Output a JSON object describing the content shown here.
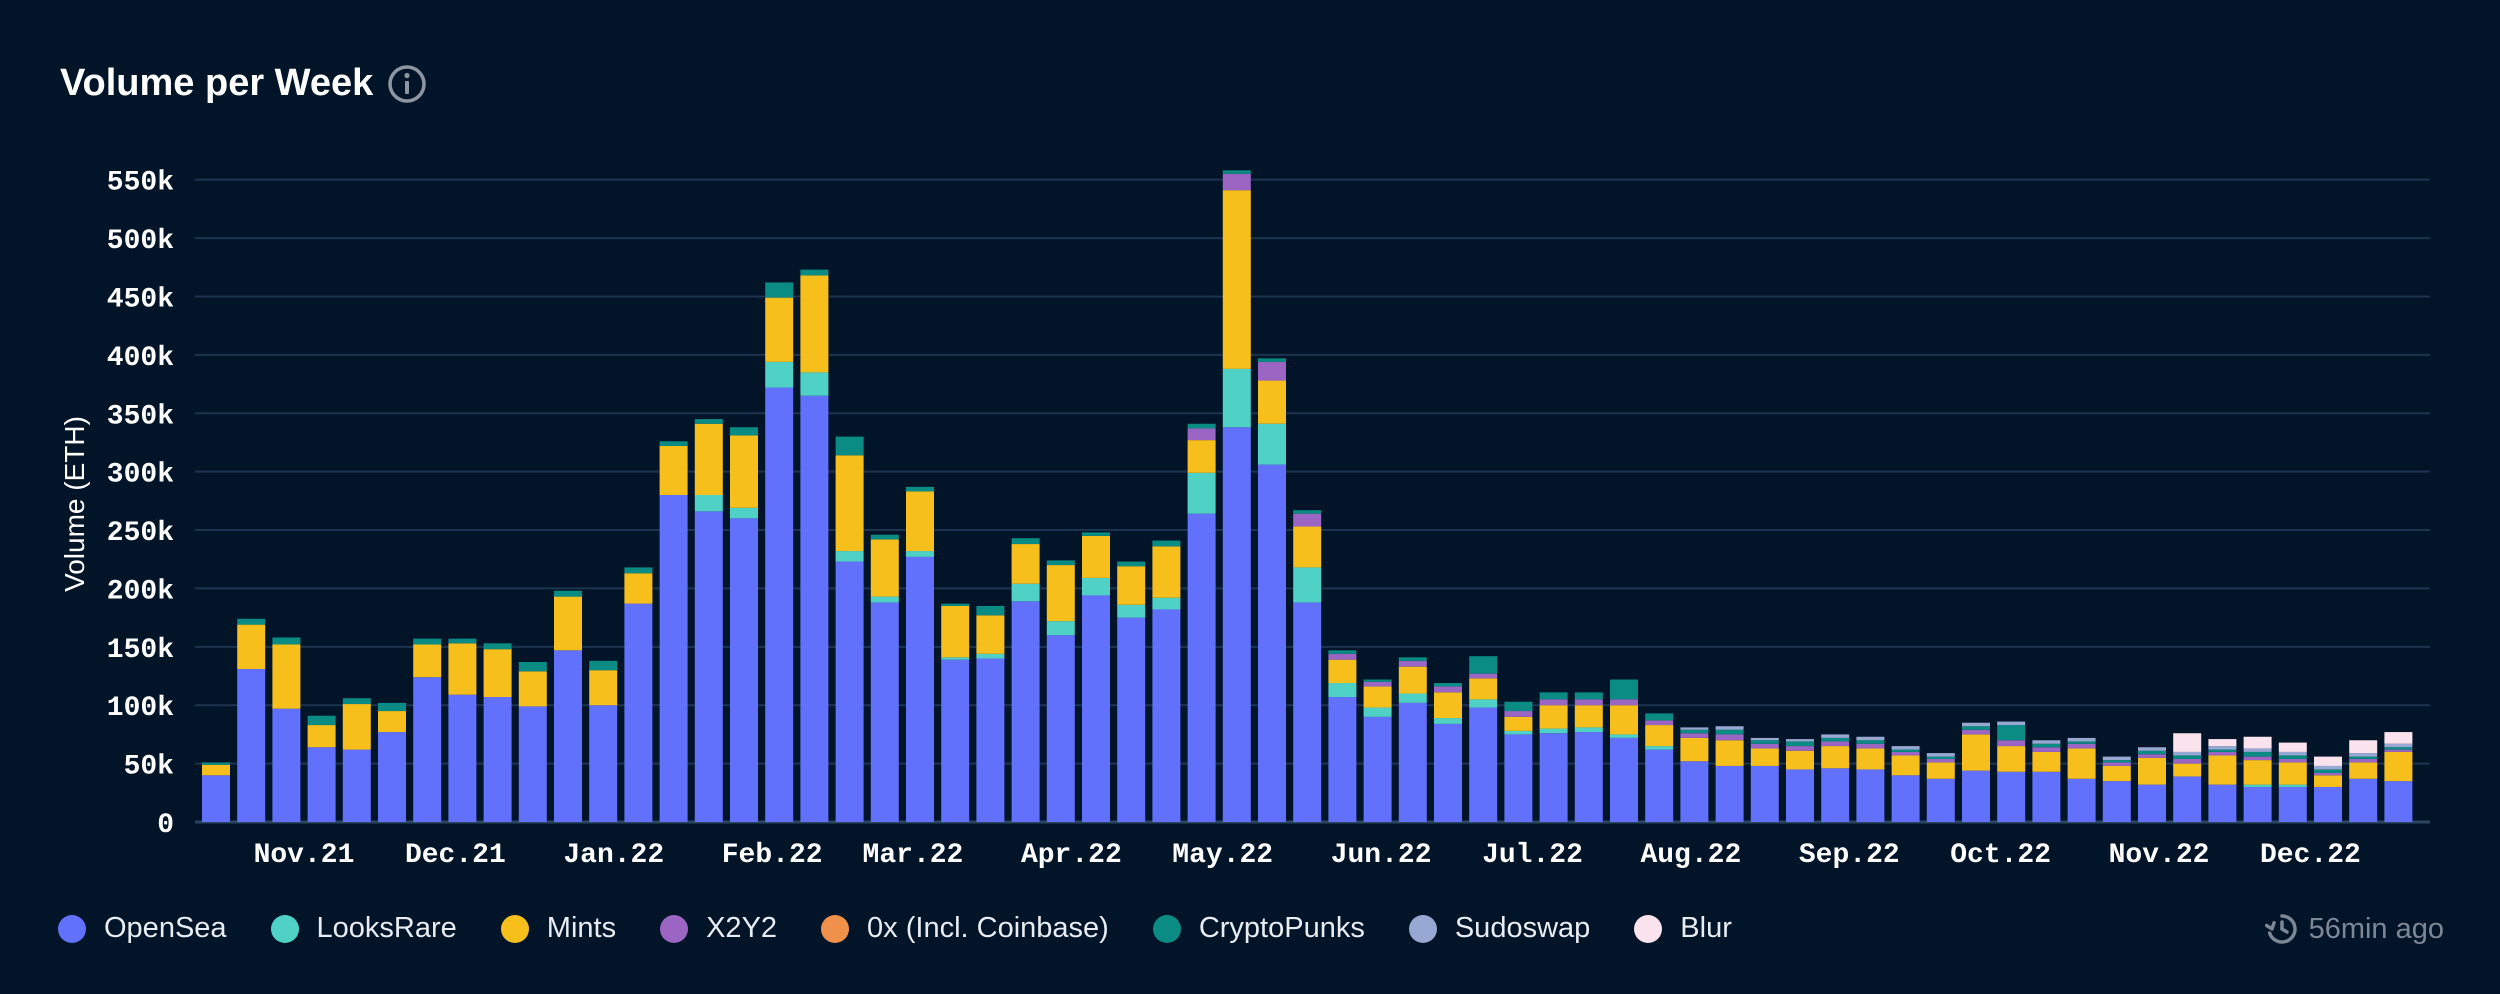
{
  "header": {
    "title": "Volume per Week",
    "info_icon": "info-circle-icon"
  },
  "footer": {
    "updated": "56min ago",
    "updated_icon": "history-clock-icon"
  },
  "chart_data": {
    "type": "bar",
    "stacked": true,
    "title": "Volume per Week",
    "xlabel": "",
    "ylabel": "Volume (ETH)",
    "ylim": [
      0,
      560000
    ],
    "y_ticks": [
      0,
      50000,
      100000,
      150000,
      200000,
      250000,
      300000,
      350000,
      400000,
      450000,
      500000,
      550000
    ],
    "y_tick_labels": [
      "0",
      "50k",
      "100k",
      "150k",
      "200k",
      "250k",
      "300k",
      "350k",
      "400k",
      "450k",
      "500k",
      "550k"
    ],
    "x_tick_labels": [
      {
        "label": "Nov.21",
        "week": 2.5
      },
      {
        "label": "Dec.21",
        "week": 6.8
      },
      {
        "label": "Jan.22",
        "week": 11.3
      },
      {
        "label": "Feb.22",
        "week": 15.8
      },
      {
        "label": "Mar.22",
        "week": 19.8
      },
      {
        "label": "Apr.22",
        "week": 24.3
      },
      {
        "label": "May.22",
        "week": 28.6
      },
      {
        "label": "Jun.22",
        "week": 33.1
      },
      {
        "label": "Jul.22",
        "week": 37.4
      },
      {
        "label": "Aug.22",
        "week": 41.9
      },
      {
        "label": "Sep.22",
        "week": 46.4
      },
      {
        "label": "Oct.22",
        "week": 50.7
      },
      {
        "label": "Nov.22",
        "week": 55.2
      },
      {
        "label": "Dec.22",
        "week": 59.5
      }
    ],
    "grid": true,
    "legend_position": "bottom",
    "series": [
      {
        "name": "OpenSea",
        "color": "#6271fc",
        "values": [
          40000,
          131000,
          97000,
          64000,
          62000,
          77000,
          124000,
          109000,
          107000,
          99000,
          147000,
          100000,
          187000,
          280000,
          266000,
          260000,
          372000,
          365000,
          223000,
          188000,
          227000,
          139000,
          140000,
          189000,
          160000,
          194000,
          175000,
          182000,
          264000,
          338000,
          306000,
          188000,
          107000,
          90000,
          102000,
          84000,
          98000,
          75000,
          76000,
          77000,
          72000,
          62000,
          52000,
          48000,
          48000,
          45000,
          46000,
          45000,
          40000,
          37000,
          44000,
          43000,
          43000,
          37000,
          35000,
          32000,
          39000,
          32000,
          30000,
          30000,
          30000,
          37000,
          35000
        ]
      },
      {
        "name": "LooksRare",
        "color": "#4fd1c5",
        "values": [
          0,
          0,
          0,
          0,
          0,
          0,
          0,
          0,
          0,
          0,
          0,
          0,
          0,
          0,
          14000,
          9000,
          22000,
          20000,
          9000,
          5000,
          5000,
          2000,
          4000,
          15000,
          12000,
          15000,
          11000,
          10000,
          35000,
          50000,
          35000,
          30000,
          12000,
          8000,
          8000,
          5000,
          7000,
          3000,
          4000,
          4000,
          3000,
          3000,
          0,
          0,
          0,
          0,
          0,
          0,
          0,
          0,
          0,
          0,
          0,
          0,
          0,
          0,
          0,
          0,
          2000,
          2000,
          0,
          0,
          0
        ]
      },
      {
        "name": "Mints",
        "color": "#f6bf1c",
        "values": [
          9000,
          38000,
          55000,
          19000,
          39000,
          18000,
          28000,
          44000,
          41000,
          30000,
          46000,
          30000,
          26000,
          42000,
          61000,
          62000,
          55000,
          83000,
          82000,
          49000,
          51000,
          44000,
          33000,
          34000,
          48000,
          36000,
          33000,
          44000,
          28000,
          153000,
          37000,
          35000,
          20000,
          18000,
          23000,
          22000,
          18000,
          12000,
          20000,
          19000,
          25000,
          18000,
          20000,
          22000,
          15000,
          16000,
          19000,
          18000,
          17000,
          14000,
          31000,
          22000,
          17000,
          26000,
          13000,
          23000,
          11000,
          25000,
          21000,
          19000,
          10000,
          14000,
          25000
        ]
      },
      {
        "name": "X2Y2",
        "color": "#9b65c4",
        "values": [
          0,
          0,
          0,
          0,
          0,
          0,
          0,
          0,
          0,
          0,
          0,
          0,
          0,
          0,
          0,
          0,
          0,
          0,
          0,
          0,
          0,
          0,
          0,
          0,
          0,
          0,
          0,
          0,
          10000,
          14000,
          16000,
          11000,
          5000,
          4000,
          5000,
          5000,
          4000,
          5000,
          5000,
          5000,
          5000,
          4000,
          4000,
          5000,
          4000,
          4000,
          4000,
          4000,
          3000,
          3000,
          4000,
          5000,
          4000,
          4000,
          3000,
          3000,
          4000,
          3000,
          3000,
          3000,
          2000,
          3000,
          2000
        ]
      },
      {
        "name": "0x (Incl. Coinbase)",
        "color": "#f0914b",
        "values": [
          0,
          0,
          0,
          0,
          0,
          0,
          0,
          0,
          0,
          0,
          0,
          0,
          0,
          0,
          0,
          0,
          0,
          0,
          0,
          0,
          0,
          0,
          0,
          0,
          0,
          0,
          0,
          0,
          0,
          0,
          0,
          0,
          0,
          0,
          0,
          0,
          0,
          0,
          0,
          0,
          0,
          0,
          0,
          0,
          0,
          0,
          0,
          0,
          0,
          0,
          0,
          0,
          0,
          0,
          0,
          0,
          0,
          0,
          0,
          0,
          0,
          0,
          0
        ]
      },
      {
        "name": "CryptoPunks",
        "color": "#0a8b84",
        "values": [
          2000,
          5000,
          6000,
          8000,
          5000,
          7000,
          5000,
          4000,
          5000,
          8000,
          5000,
          8000,
          5000,
          4000,
          4000,
          7000,
          13000,
          5000,
          16000,
          4000,
          4000,
          2000,
          8000,
          5000,
          4000,
          3000,
          4000,
          5000,
          4000,
          3000,
          3000,
          3000,
          3000,
          2000,
          3000,
          3000,
          15000,
          8000,
          6000,
          6000,
          17000,
          6000,
          3000,
          4000,
          3000,
          4000,
          3000,
          3000,
          2000,
          2000,
          3000,
          13000,
          3000,
          2000,
          2000,
          3000,
          3000,
          2000,
          4000,
          3000,
          3000,
          2000,
          2000
        ]
      },
      {
        "name": "Sudoswap",
        "color": "#97a8d3",
        "values": [
          0,
          0,
          0,
          0,
          0,
          0,
          0,
          0,
          0,
          0,
          0,
          0,
          0,
          0,
          0,
          0,
          0,
          0,
          0,
          0,
          0,
          0,
          0,
          0,
          0,
          0,
          0,
          0,
          0,
          0,
          0,
          0,
          0,
          0,
          0,
          0,
          0,
          0,
          0,
          0,
          0,
          0,
          2000,
          3000,
          2000,
          2000,
          3000,
          3000,
          3000,
          3000,
          3000,
          3000,
          3000,
          3000,
          3000,
          3000,
          3000,
          3000,
          3000,
          3000,
          3000,
          3000,
          3000
        ]
      },
      {
        "name": "Blur",
        "color": "#fbe3ee",
        "values": [
          0,
          0,
          0,
          0,
          0,
          0,
          0,
          0,
          0,
          0,
          0,
          0,
          0,
          0,
          0,
          0,
          0,
          0,
          0,
          0,
          0,
          0,
          0,
          0,
          0,
          0,
          0,
          0,
          0,
          0,
          0,
          0,
          0,
          0,
          0,
          0,
          0,
          0,
          0,
          0,
          0,
          0,
          0,
          0,
          0,
          0,
          0,
          0,
          0,
          0,
          0,
          0,
          0,
          0,
          0,
          0,
          16000,
          6000,
          10000,
          8000,
          8000,
          11000,
          10000
        ]
      }
    ]
  }
}
